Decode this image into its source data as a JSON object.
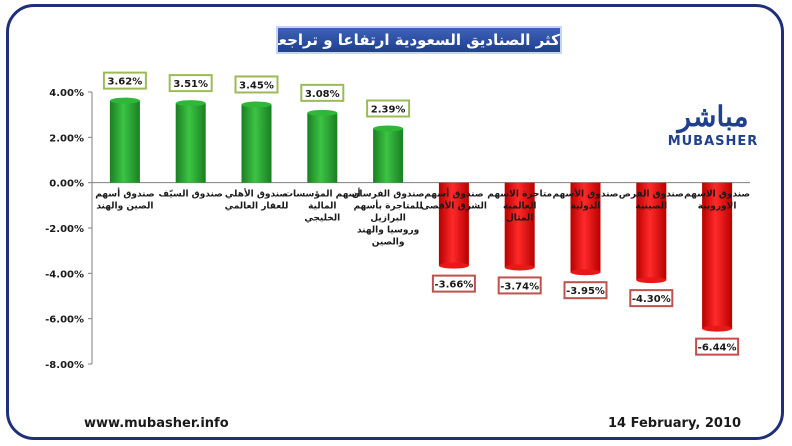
{
  "chart_data": {
    "type": "bar",
    "title": "اكثر الصناديق السعودية ارتفاعا و تراجعا",
    "categories": [
      "صندوق أسهم الصين والهند",
      "صندوق السيّف",
      "صندوق الأهلي للعقار العالمي",
      "أسهم المؤسسات المالية الخليجي",
      "صندوق الفرسان للمتاجرة بأسهم البرازيل وروسيا والهند والصين",
      "صندوق أسهم الشرق الأقصى",
      "متاجرة الاسهم العالمية المثال",
      "صندوق الأسهم الدولية",
      "صندوق الفرص الصينية",
      "صندوق الاسهم الاوروبية"
    ],
    "values": [
      3.62,
      3.51,
      3.45,
      3.08,
      2.39,
      -3.66,
      -3.74,
      -3.95,
      -4.3,
      -6.44
    ],
    "value_labels": [
      "3.62%",
      "3.51%",
      "3.45%",
      "3.08%",
      "2.39%",
      "-3.66%",
      "-3.74%",
      "-3.95%",
      "-4.30%",
      "-6.44%"
    ],
    "ylim": [
      -8,
      4
    ],
    "yticks": [
      "4.00%",
      "2.00%",
      "0.00%",
      "-2.00%",
      "-4.00%",
      "-6.00%",
      "-8.00%"
    ],
    "xlabel": "",
    "ylabel": "",
    "grid": false,
    "colors": {
      "positive": "#22a02a",
      "negative": "#e01010",
      "positive_label_border": "#9bbb59",
      "negative_label_border": "#c0504d"
    }
  },
  "branding": {
    "logo_arabic": "مباشر",
    "logo_latin": "MUBASHER"
  },
  "footer": {
    "url": "www.mubasher.info",
    "date": "14 February, 2010"
  }
}
